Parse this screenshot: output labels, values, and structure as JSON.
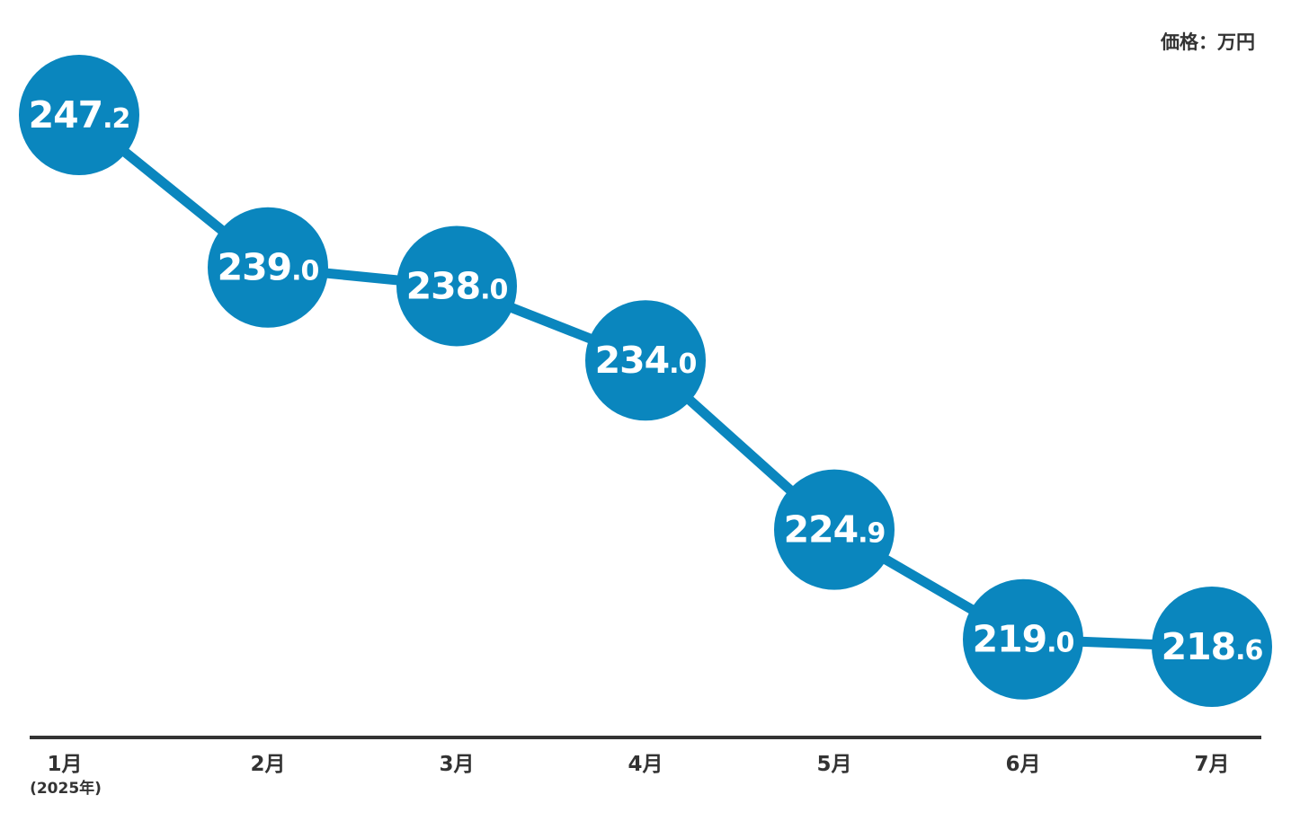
{
  "unit_label": "価格：万円",
  "chart_data": {
    "type": "line",
    "title": "",
    "xlabel": "",
    "ylabel": "",
    "categories": [
      "1月",
      "2月",
      "3月",
      "4月",
      "5月",
      "6月",
      "7月"
    ],
    "first_category_note": "(2025年)",
    "series": [
      {
        "values": [
          247.2,
          239.0,
          238.0,
          234.0,
          224.9,
          219.0,
          218.6
        ]
      }
    ],
    "ylim": [
      210,
      252
    ],
    "grid": false,
    "colors": {
      "marker": "#0A86BE",
      "line": "#0A86BE",
      "axis": "#333333",
      "label_text": "#ffffff"
    }
  }
}
